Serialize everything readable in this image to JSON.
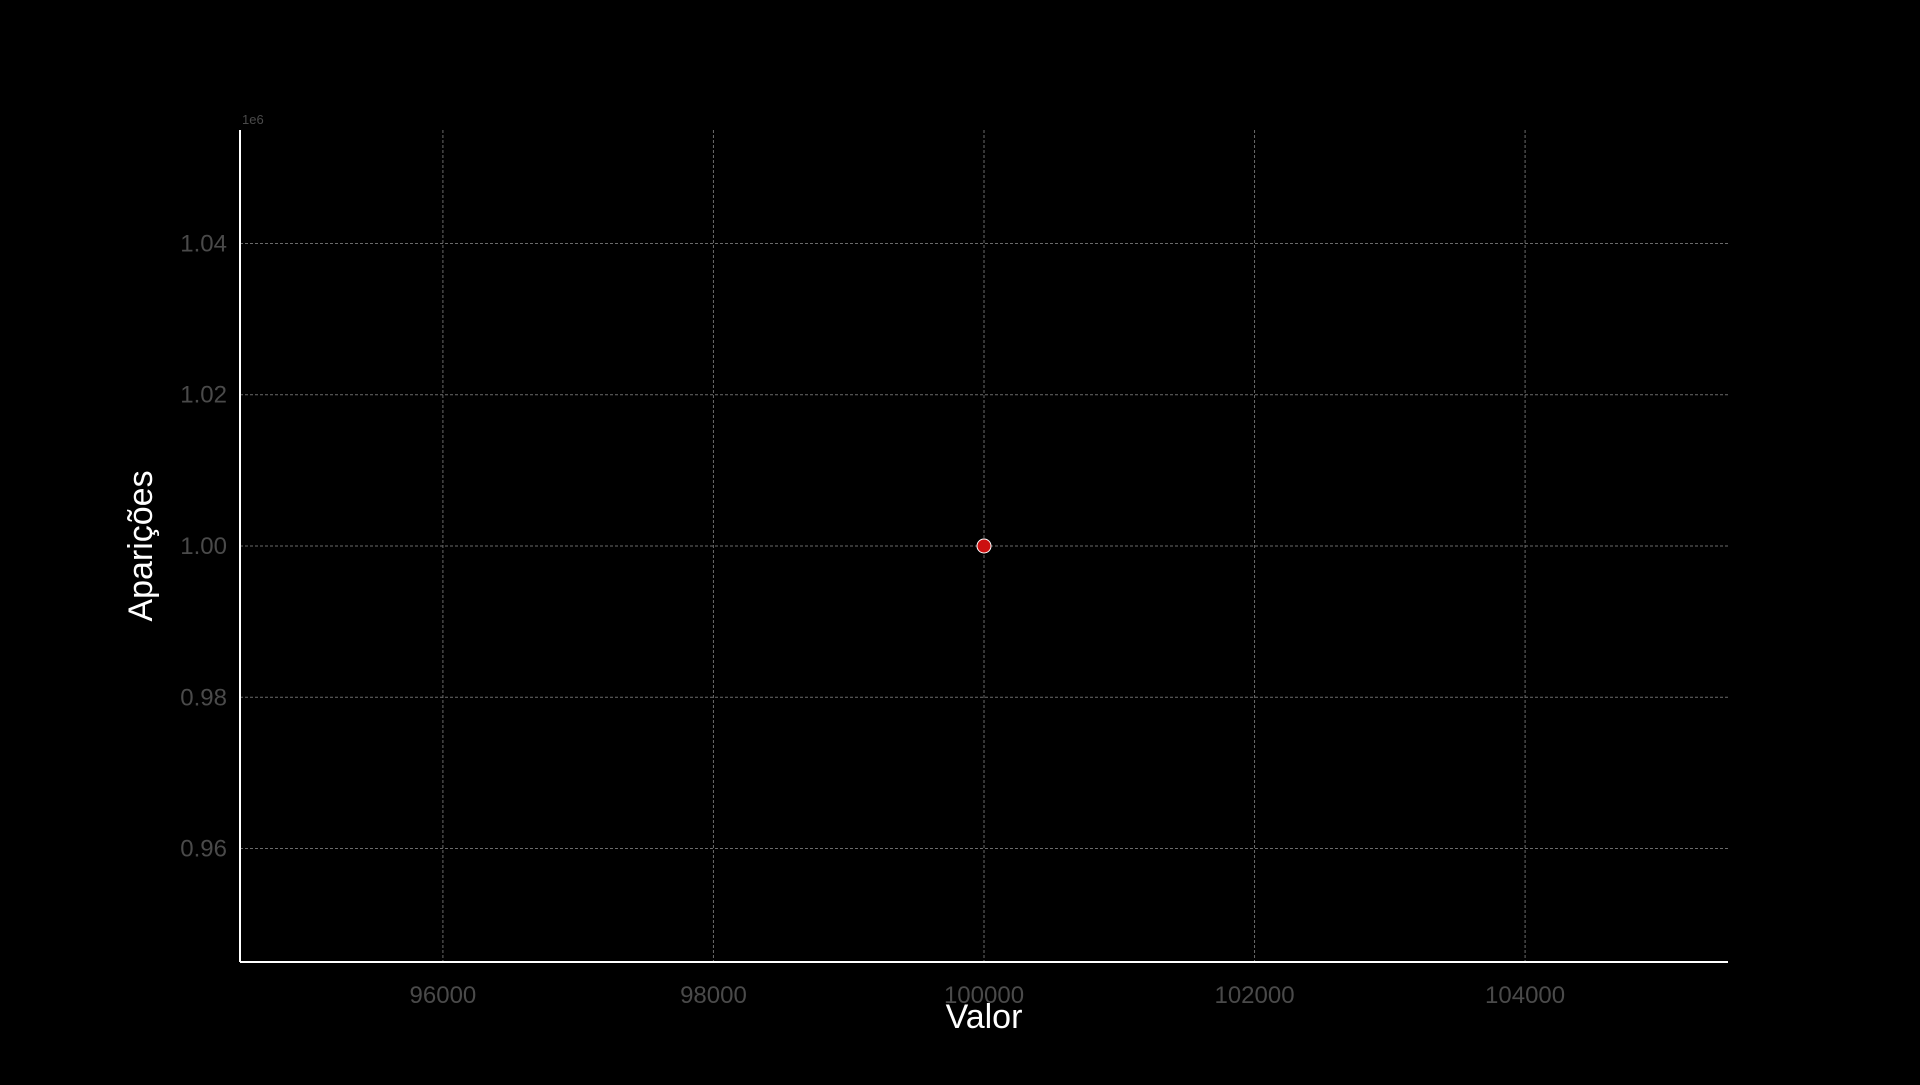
{
  "chart_data": {
    "type": "scatter",
    "xlabel": "Valor",
    "ylabel": "Aparições",
    "y_offset_text": "1e6",
    "x_ticks": [
      96000,
      98000,
      100000,
      102000,
      104000
    ],
    "x_tick_labels": [
      "96000",
      "98000",
      "100000",
      "102000",
      "104000"
    ],
    "y_ticks": [
      0.96,
      0.98,
      1.0,
      1.02,
      1.04
    ],
    "y_tick_labels": [
      "0.96",
      "0.98",
      "1.00",
      "1.02",
      "1.04"
    ],
    "xlim": [
      94500,
      105500
    ],
    "ylim": [
      0.945,
      1.055
    ],
    "grid": true,
    "background_color": "#000000",
    "point_color": "#cc1010",
    "point_edge_color": "#ffffff",
    "points": [
      {
        "x": 100000,
        "y": 1.0
      }
    ]
  }
}
